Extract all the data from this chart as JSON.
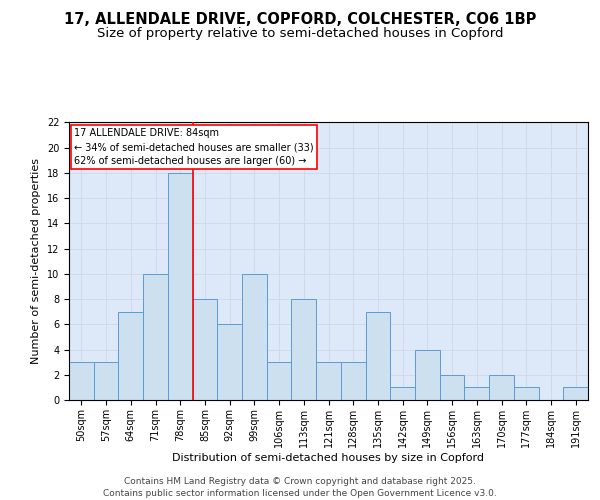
{
  "title_line1": "17, ALLENDALE DRIVE, COPFORD, COLCHESTER, CO6 1BP",
  "title_line2": "Size of property relative to semi-detached houses in Copford",
  "xlabel": "Distribution of semi-detached houses by size in Copford",
  "ylabel": "Number of semi-detached properties",
  "categories": [
    "50sqm",
    "57sqm",
    "64sqm",
    "71sqm",
    "78sqm",
    "85sqm",
    "92sqm",
    "99sqm",
    "106sqm",
    "113sqm",
    "121sqm",
    "128sqm",
    "135sqm",
    "142sqm",
    "149sqm",
    "156sqm",
    "163sqm",
    "170sqm",
    "177sqm",
    "184sqm",
    "191sqm"
  ],
  "values": [
    3,
    3,
    7,
    10,
    18,
    8,
    6,
    10,
    3,
    8,
    3,
    3,
    7,
    1,
    4,
    2,
    1,
    2,
    1,
    0,
    1
  ],
  "bar_color": "#cce0f0",
  "bar_edge_color": "#5b9bd5",
  "grid_color": "#d0d8e8",
  "background_color": "#dde8f8",
  "marker_index": 4,
  "marker_color": "red",
  "annotation_title": "17 ALLENDALE DRIVE: 84sqm",
  "annotation_line1": "← 34% of semi-detached houses are smaller (33)",
  "annotation_line2": "62% of semi-detached houses are larger (60) →",
  "ylim": [
    0,
    22
  ],
  "yticks": [
    0,
    2,
    4,
    6,
    8,
    10,
    12,
    14,
    16,
    18,
    20,
    22
  ],
  "footer": "Contains HM Land Registry data © Crown copyright and database right 2025.\nContains public sector information licensed under the Open Government Licence v3.0.",
  "title_fontsize": 10.5,
  "subtitle_fontsize": 9.5,
  "axis_label_fontsize": 8,
  "tick_fontsize": 7,
  "annotation_fontsize": 7,
  "footer_fontsize": 6.5
}
